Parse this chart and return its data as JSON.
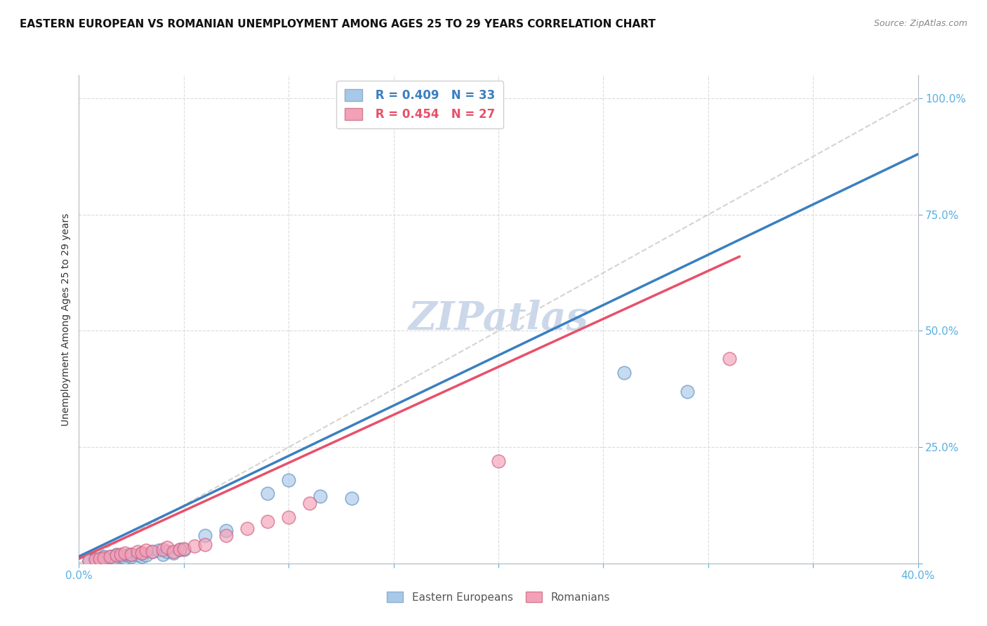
{
  "title": "EASTERN EUROPEAN VS ROMANIAN UNEMPLOYMENT AMONG AGES 25 TO 29 YEARS CORRELATION CHART",
  "source": "Source: ZipAtlas.com",
  "ylabel": "Unemployment Among Ages 25 to 29 years",
  "xlim": [
    0.0,
    0.4
  ],
  "ylim": [
    0.0,
    1.05
  ],
  "xtick_positions": [
    0.0,
    0.05,
    0.1,
    0.15,
    0.2,
    0.25,
    0.3,
    0.35,
    0.4
  ],
  "ytick_positions": [
    0.0,
    0.25,
    0.5,
    0.75,
    1.0
  ],
  "legend_R1": "R = 0.409",
  "legend_N1": "N = 33",
  "legend_R2": "R = 0.454",
  "legend_N2": "N = 27",
  "blue_scatter_color": "#a8c8e8",
  "blue_line_color": "#3a7fc1",
  "pink_scatter_color": "#f4a0b8",
  "pink_line_color": "#e8506a",
  "watermark": "ZIPatlas",
  "watermark_color": "#ccd8ea",
  "background_color": "#ffffff",
  "grid_color": "#d8d8d8",
  "tick_color": "#5ab0e0",
  "blue_scatter_x": [
    0.005,
    0.008,
    0.01,
    0.012,
    0.013,
    0.015,
    0.015,
    0.017,
    0.018,
    0.02,
    0.022,
    0.023,
    0.025,
    0.025,
    0.028,
    0.03,
    0.03,
    0.032,
    0.035,
    0.038,
    0.04,
    0.042,
    0.045,
    0.048,
    0.05,
    0.06,
    0.07,
    0.09,
    0.1,
    0.115,
    0.13,
    0.26,
    0.29
  ],
  "blue_scatter_y": [
    0.005,
    0.008,
    0.01,
    0.015,
    0.01,
    0.008,
    0.015,
    0.012,
    0.02,
    0.015,
    0.012,
    0.018,
    0.015,
    0.02,
    0.018,
    0.015,
    0.022,
    0.018,
    0.025,
    0.028,
    0.02,
    0.025,
    0.022,
    0.03,
    0.03,
    0.06,
    0.07,
    0.15,
    0.18,
    0.145,
    0.14,
    0.41,
    0.37
  ],
  "pink_scatter_x": [
    0.005,
    0.008,
    0.01,
    0.012,
    0.015,
    0.018,
    0.02,
    0.022,
    0.025,
    0.028,
    0.03,
    0.032,
    0.035,
    0.04,
    0.042,
    0.045,
    0.048,
    0.05,
    0.055,
    0.06,
    0.07,
    0.08,
    0.09,
    0.1,
    0.11,
    0.2,
    0.31
  ],
  "pink_scatter_y": [
    0.005,
    0.008,
    0.01,
    0.012,
    0.015,
    0.018,
    0.02,
    0.022,
    0.02,
    0.025,
    0.022,
    0.028,
    0.025,
    0.03,
    0.035,
    0.025,
    0.03,
    0.032,
    0.038,
    0.04,
    0.06,
    0.075,
    0.09,
    0.1,
    0.13,
    0.22,
    0.44
  ],
  "blue_line_x0": 0.0,
  "blue_line_x1": 0.4,
  "blue_line_y0": 0.015,
  "blue_line_y1": 0.88,
  "pink_line_x0": 0.0,
  "pink_line_x1": 0.315,
  "pink_line_y0": 0.01,
  "pink_line_y1": 0.66,
  "diag_line_x0": 0.0,
  "diag_line_x1": 0.4,
  "diag_line_y0": 0.0,
  "diag_line_y1": 1.0,
  "title_fontsize": 11,
  "axis_label_fontsize": 10,
  "tick_fontsize": 11,
  "legend_fontsize": 12,
  "watermark_fontsize": 40
}
